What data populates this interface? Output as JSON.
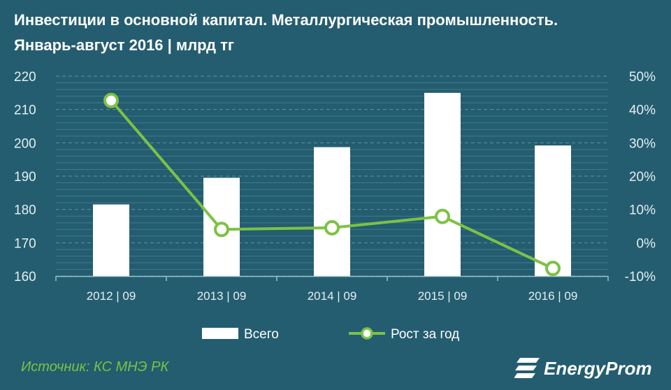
{
  "header": {
    "title_line1": "Инвестиции в основной капитал. Металлургическая промышленность.",
    "title_line2": "Январь-август 2016  | млрд тг"
  },
  "chart_data": {
    "type": "bar",
    "categories": [
      "2012 | 09",
      "2013 | 09",
      "2014 | 09",
      "2015 | 09",
      "2016 | 09"
    ],
    "series": [
      {
        "name": "Всего",
        "type": "bar",
        "axis": "left",
        "values": [
          181.5,
          189.5,
          198.7,
          215,
          199.2
        ]
      },
      {
        "name": "Рост за год",
        "type": "line",
        "axis": "right",
        "values": [
          42.7,
          4,
          4.5,
          7.9,
          -7.7
        ]
      }
    ],
    "y_left": {
      "ylim": [
        160,
        220
      ],
      "ticks": [
        160,
        170,
        180,
        190,
        200,
        210,
        220
      ]
    },
    "y_right": {
      "ylim": [
        -10,
        50
      ],
      "ticks": [
        -10,
        0,
        10,
        20,
        30,
        40,
        50
      ],
      "tick_labels": [
        "-10%",
        "0%",
        "10%",
        "20%",
        "30%",
        "40%",
        "50%"
      ]
    },
    "legend_position": "bottom-center",
    "grid": true,
    "colors": {
      "background": "#245d70",
      "bar": "#ffffff",
      "line": "#7cc243",
      "text": "#e4eef2",
      "grid": "#5f93a4"
    }
  },
  "footer": {
    "source": "Источник: КС МНЭ РК",
    "logo_text": "EnergyProm",
    "logo_icon": "energyprom-logo-icon"
  }
}
